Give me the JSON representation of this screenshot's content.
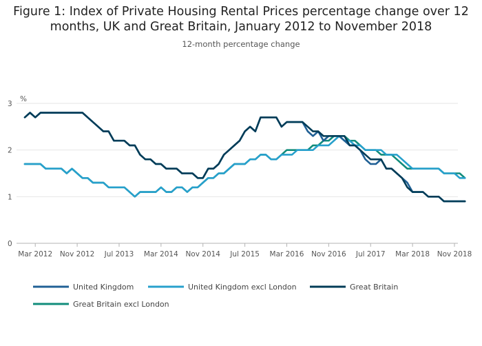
{
  "title": "Figure 1: Index of Private Housing Rental Prices percentage change over 12 months, UK and Great Britain, January 2012 to November 2018",
  "subtitle": "12-month percentage change",
  "colors": {
    "united_kingdom": "#206095",
    "uk_excl_london": "#27a0cc",
    "great_britain": "#003c57",
    "gb_excl_london": "#118c7b",
    "grid": "#e6e6e6",
    "axis": "#b3b3b3"
  },
  "chart_data": {
    "type": "line",
    "x_start": "2012-01",
    "x_end": "2018-11",
    "ylabel": "%",
    "ylim": [
      0,
      3
    ],
    "y_ticks": [
      0,
      1,
      2,
      3
    ],
    "x_ticks": [
      "Mar 2012",
      "Nov 2012",
      "Jul 2013",
      "Mar 2014",
      "Nov 2014",
      "Jul 2015",
      "Mar 2016",
      "Nov 2016",
      "Jul 2017",
      "Mar 2018",
      "Nov 2018"
    ],
    "legend_position": "bottom",
    "grid": true,
    "series": [
      {
        "name": "United Kingdom",
        "color": "#206095",
        "values": [
          2.7,
          2.8,
          2.7,
          2.8,
          2.8,
          2.8,
          2.8,
          2.8,
          2.8,
          2.8,
          2.8,
          2.8,
          2.7,
          2.6,
          2.5,
          2.4,
          2.4,
          2.2,
          2.2,
          2.2,
          2.1,
          2.1,
          1.9,
          1.8,
          1.8,
          1.7,
          1.7,
          1.6,
          1.6,
          1.6,
          1.5,
          1.5,
          1.5,
          1.4,
          1.4,
          1.6,
          1.6,
          1.7,
          1.9,
          2.0,
          2.1,
          2.2,
          2.4,
          2.5,
          2.4,
          2.7,
          2.7,
          2.7,
          2.7,
          2.5,
          2.6,
          2.6,
          2.6,
          2.6,
          2.4,
          2.3,
          2.4,
          2.2,
          2.3,
          2.3,
          2.3,
          2.2,
          2.1,
          2.1,
          2.0,
          1.8,
          1.7,
          1.7,
          1.8,
          1.6,
          1.6,
          1.5,
          1.4,
          1.3,
          1.1,
          1.1,
          1.1,
          1.0,
          1.0,
          1.0,
          0.9,
          0.9,
          0.9,
          0.9,
          0.9
        ]
      },
      {
        "name": "United Kingdom excl London",
        "color": "#27a0cc",
        "values": [
          1.7,
          1.7,
          1.7,
          1.7,
          1.6,
          1.6,
          1.6,
          1.6,
          1.5,
          1.6,
          1.5,
          1.4,
          1.4,
          1.3,
          1.3,
          1.3,
          1.2,
          1.2,
          1.2,
          1.2,
          1.1,
          1.0,
          1.1,
          1.1,
          1.1,
          1.1,
          1.2,
          1.1,
          1.1,
          1.2,
          1.2,
          1.1,
          1.2,
          1.2,
          1.3,
          1.4,
          1.4,
          1.5,
          1.5,
          1.6,
          1.7,
          1.7,
          1.7,
          1.8,
          1.8,
          1.9,
          1.9,
          1.8,
          1.8,
          1.9,
          1.9,
          1.9,
          2.0,
          2.0,
          2.0,
          2.0,
          2.1,
          2.1,
          2.1,
          2.2,
          2.3,
          2.2,
          2.2,
          2.1,
          2.1,
          2.0,
          2.0,
          2.0,
          2.0,
          1.9,
          1.9,
          1.9,
          1.8,
          1.7,
          1.6,
          1.6,
          1.6,
          1.6,
          1.6,
          1.6,
          1.5,
          1.5,
          1.5,
          1.4,
          1.4
        ]
      },
      {
        "name": "Great Britain",
        "color": "#003c57",
        "values": [
          2.7,
          2.8,
          2.7,
          2.8,
          2.8,
          2.8,
          2.8,
          2.8,
          2.8,
          2.8,
          2.8,
          2.8,
          2.7,
          2.6,
          2.5,
          2.4,
          2.4,
          2.2,
          2.2,
          2.2,
          2.1,
          2.1,
          1.9,
          1.8,
          1.8,
          1.7,
          1.7,
          1.6,
          1.6,
          1.6,
          1.5,
          1.5,
          1.5,
          1.4,
          1.4,
          1.6,
          1.6,
          1.7,
          1.9,
          2.0,
          2.1,
          2.2,
          2.4,
          2.5,
          2.4,
          2.7,
          2.7,
          2.7,
          2.7,
          2.5,
          2.6,
          2.6,
          2.6,
          2.6,
          2.5,
          2.4,
          2.4,
          2.3,
          2.3,
          2.3,
          2.3,
          2.3,
          2.1,
          2.1,
          2.0,
          1.9,
          1.8,
          1.8,
          1.8,
          1.6,
          1.6,
          1.5,
          1.4,
          1.2,
          1.1,
          1.1,
          1.1,
          1.0,
          1.0,
          1.0,
          0.9,
          0.9,
          0.9,
          0.9,
          0.9
        ]
      },
      {
        "name": "Great Britain excl London",
        "color": "#118c7b",
        "values": [
          1.7,
          1.7,
          1.7,
          1.7,
          1.6,
          1.6,
          1.6,
          1.6,
          1.5,
          1.6,
          1.5,
          1.4,
          1.4,
          1.3,
          1.3,
          1.3,
          1.2,
          1.2,
          1.2,
          1.2,
          1.1,
          1.0,
          1.1,
          1.1,
          1.1,
          1.1,
          1.2,
          1.1,
          1.1,
          1.2,
          1.2,
          1.1,
          1.2,
          1.2,
          1.3,
          1.4,
          1.4,
          1.5,
          1.5,
          1.6,
          1.7,
          1.7,
          1.7,
          1.8,
          1.8,
          1.9,
          1.9,
          1.8,
          1.8,
          1.9,
          2.0,
          2.0,
          2.0,
          2.0,
          2.0,
          2.1,
          2.1,
          2.2,
          2.2,
          2.3,
          2.3,
          2.3,
          2.2,
          2.2,
          2.1,
          2.0,
          2.0,
          2.0,
          1.9,
          1.9,
          1.9,
          1.8,
          1.7,
          1.6,
          1.6,
          1.6,
          1.6,
          1.6,
          1.6,
          1.6,
          1.5,
          1.5,
          1.5,
          1.5,
          1.4
        ]
      }
    ]
  }
}
